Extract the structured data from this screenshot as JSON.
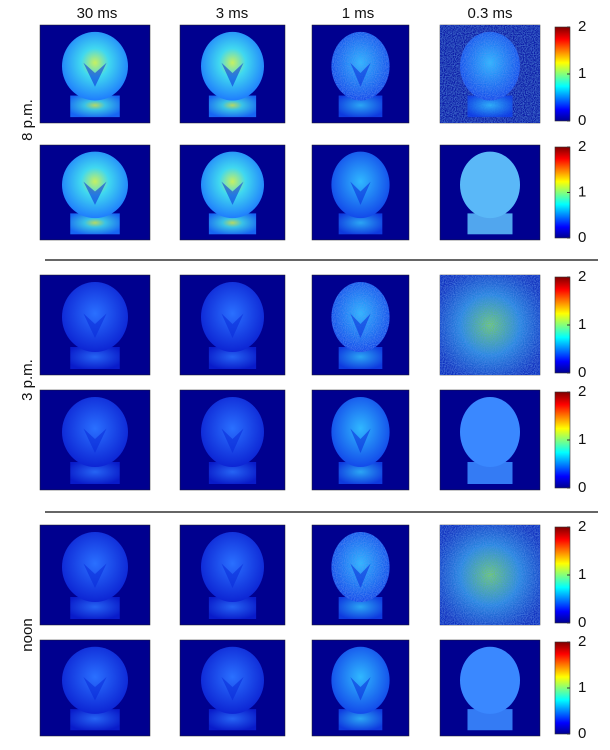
{
  "columns": [
    "30 ms",
    "3 ms",
    "1 ms",
    "0.3 ms"
  ],
  "groups": [
    {
      "label": "8 p.m."
    },
    {
      "label": "3 p.m."
    },
    {
      "label": "noon"
    }
  ],
  "colorbar": {
    "lim": [
      0,
      2
    ],
    "ticks": [
      0,
      1,
      2
    ]
  }
}
